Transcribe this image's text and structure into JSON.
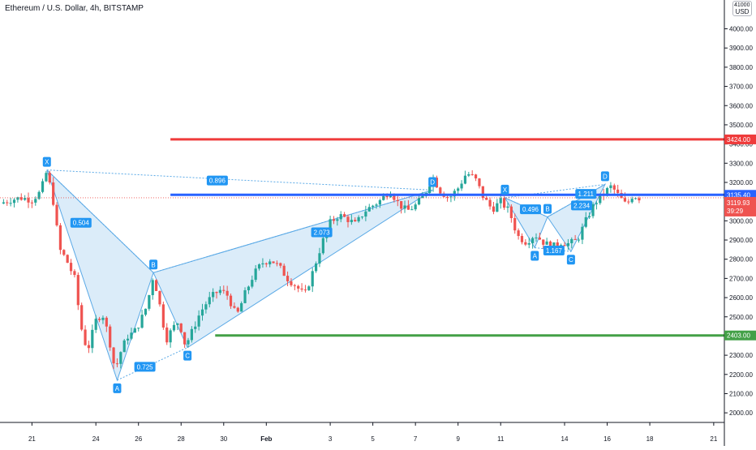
{
  "header": {
    "title": "Ethereum / U.S. Dollar, 4h, BITSTAMP",
    "currency_badge": "USD",
    "axis_top_label": "41000.00"
  },
  "colors": {
    "up": "#26a69a",
    "down": "#ef5350",
    "resistance": "#ef3b3b",
    "support": "#43a047",
    "pivot": "#2962ff",
    "pattern_fill": "#cfe5f7",
    "pattern_stroke": "#5aa9e6",
    "label_bg": "#2196f3"
  },
  "chart_data": {
    "type": "candlestick",
    "title": "Ethereum / U.S. Dollar, 4h, BITSTAMP",
    "y_axis": {
      "range": [
        1950,
        4150
      ],
      "ticks": [
        2000,
        2100,
        2200,
        2300,
        2400,
        2500,
        2600,
        2700,
        2800,
        2900,
        3000,
        3100,
        3200,
        3300,
        3400,
        3500,
        3600,
        3700,
        3800,
        3900,
        4000
      ],
      "tick_labels": [
        "2000.00",
        "2100.00",
        "2200.00",
        "2300.00",
        "2400.00",
        "2500.00",
        "2600.00",
        "2700.00",
        "2800.00",
        "2900.00",
        "3000.00",
        "3100.00",
        "3200.00",
        "3300.00",
        "3400.00",
        "3500.00",
        "3600.00",
        "3700.00",
        "3800.00",
        "3900.00",
        "4000.00"
      ]
    },
    "x_axis": {
      "range": [
        19.5,
        53.5
      ],
      "ticks": [
        {
          "x": 21,
          "label": "21"
        },
        {
          "x": 24,
          "label": "24"
        },
        {
          "x": 26,
          "label": "26"
        },
        {
          "x": 28,
          "label": "28"
        },
        {
          "x": 30,
          "label": "30"
        },
        {
          "x": 32,
          "label": "Feb",
          "bold": true
        },
        {
          "x": 35,
          "label": "3"
        },
        {
          "x": 37,
          "label": "5"
        },
        {
          "x": 39,
          "label": "7"
        },
        {
          "x": 41,
          "label": "9"
        },
        {
          "x": 43,
          "label": "11"
        },
        {
          "x": 46,
          "label": "14"
        },
        {
          "x": 48,
          "label": "16"
        },
        {
          "x": 50,
          "label": "18"
        },
        {
          "x": 53,
          "label": "21"
        }
      ]
    },
    "price_path": [
      [
        19.5,
        3090
      ],
      [
        20,
        3110
      ],
      [
        20.5,
        3120
      ],
      [
        21,
        3110
      ],
      [
        21.4,
        3150
      ],
      [
        21.7,
        3260
      ],
      [
        22,
        3100
      ],
      [
        22.3,
        2850
      ],
      [
        22.6,
        2800
      ],
      [
        23,
        2700
      ],
      [
        23.3,
        2450
      ],
      [
        23.6,
        2320
      ],
      [
        24,
        2480
      ],
      [
        24.3,
        2520
      ],
      [
        24.6,
        2400
      ],
      [
        24.9,
        2220
      ],
      [
        25.2,
        2330
      ],
      [
        25.5,
        2400
      ],
      [
        25.8,
        2420
      ],
      [
        26.1,
        2480
      ],
      [
        26.4,
        2560
      ],
      [
        26.7,
        2720
      ],
      [
        27,
        2560
      ],
      [
        27.3,
        2380
      ],
      [
        27.6,
        2440
      ],
      [
        27.9,
        2480
      ],
      [
        28.2,
        2350
      ],
      [
        28.5,
        2420
      ],
      [
        28.8,
        2500
      ],
      [
        29.1,
        2560
      ],
      [
        29.4,
        2600
      ],
      [
        29.8,
        2640
      ],
      [
        30.2,
        2610
      ],
      [
        30.6,
        2500
      ],
      [
        31,
        2620
      ],
      [
        31.4,
        2720
      ],
      [
        31.8,
        2780
      ],
      [
        32.2,
        2800
      ],
      [
        32.6,
        2760
      ],
      [
        33,
        2700
      ],
      [
        33.4,
        2660
      ],
      [
        33.8,
        2610
      ],
      [
        34.2,
        2740
      ],
      [
        34.6,
        2880
      ],
      [
        35,
        2990
      ],
      [
        35.4,
        3030
      ],
      [
        35.8,
        3010
      ],
      [
        36.2,
        2980
      ],
      [
        36.6,
        3050
      ],
      [
        37,
        3080
      ],
      [
        37.4,
        3110
      ],
      [
        37.8,
        3160
      ],
      [
        38.2,
        3090
      ],
      [
        38.6,
        3050
      ],
      [
        39,
        3080
      ],
      [
        39.4,
        3130
      ],
      [
        39.8,
        3230
      ],
      [
        40.2,
        3150
      ],
      [
        40.6,
        3120
      ],
      [
        41,
        3170
      ],
      [
        41.4,
        3250
      ],
      [
        41.8,
        3220
      ],
      [
        42.2,
        3120
      ],
      [
        42.6,
        3060
      ],
      [
        43,
        3100
      ],
      [
        43.4,
        3050
      ],
      [
        43.8,
        2920
      ],
      [
        44.2,
        2890
      ],
      [
        44.6,
        2930
      ],
      [
        45,
        2890
      ],
      [
        45.4,
        2860
      ],
      [
        45.8,
        2890
      ],
      [
        46.2,
        2880
      ],
      [
        46.6,
        2900
      ],
      [
        47,
        3000
      ],
      [
        47.4,
        3090
      ],
      [
        47.8,
        3140
      ],
      [
        48.2,
        3180
      ],
      [
        48.6,
        3120
      ],
      [
        48.9,
        3080
      ],
      [
        49.2,
        3135
      ],
      [
        49.5,
        3120
      ]
    ],
    "horizontal_levels": [
      {
        "name": "resistance",
        "value": 3424,
        "label": "3424.00",
        "x_start": 27.5,
        "color": "resistance"
      },
      {
        "name": "pivot",
        "value": 3135.4,
        "label": "3135.40",
        "x_start": 27.5,
        "color": "pivot"
      },
      {
        "name": "support",
        "value": 2403,
        "label": "2403.00",
        "x_start": 29.6,
        "color": "support"
      }
    ],
    "current_price": {
      "value": 3119.93,
      "label": "3119.93",
      "countdown": "39:29"
    },
    "patterns": [
      {
        "name": "large-pattern",
        "points": [
          {
            "label": "X",
            "x": 21.7,
            "y": 3265
          },
          {
            "label": "A",
            "x": 25.0,
            "y": 2170
          },
          {
            "label": "B",
            "x": 26.7,
            "y": 2730
          },
          {
            "label": "C",
            "x": 28.3,
            "y": 2340
          },
          {
            "label": "D",
            "x": 39.8,
            "y": 3160
          }
        ],
        "ratios": [
          {
            "value": "0.504",
            "x": 23.3,
            "y": 2990
          },
          {
            "value": "0.725",
            "x": 26.3,
            "y": 2240
          },
          {
            "value": "2.073",
            "x": 34.6,
            "y": 2940
          },
          {
            "value": "0.896",
            "x": 29.7,
            "y": 3210
          }
        ]
      },
      {
        "name": "small-pattern",
        "points": [
          {
            "label": "X",
            "x": 43.2,
            "y": 3120
          },
          {
            "label": "A",
            "x": 44.6,
            "y": 2860
          },
          {
            "label": "B",
            "x": 45.2,
            "y": 3020
          },
          {
            "label": "C",
            "x": 46.3,
            "y": 2840
          },
          {
            "label": "D",
            "x": 47.9,
            "y": 3190
          }
        ],
        "ratios": [
          {
            "value": "0.496",
            "x": 44.4,
            "y": 3060
          },
          {
            "value": "1.211",
            "x": 47.0,
            "y": 3140
          },
          {
            "value": "2.234",
            "x": 46.8,
            "y": 3080
          },
          {
            "value": "1.167",
            "x": 45.5,
            "y": 2845
          }
        ]
      }
    ]
  }
}
